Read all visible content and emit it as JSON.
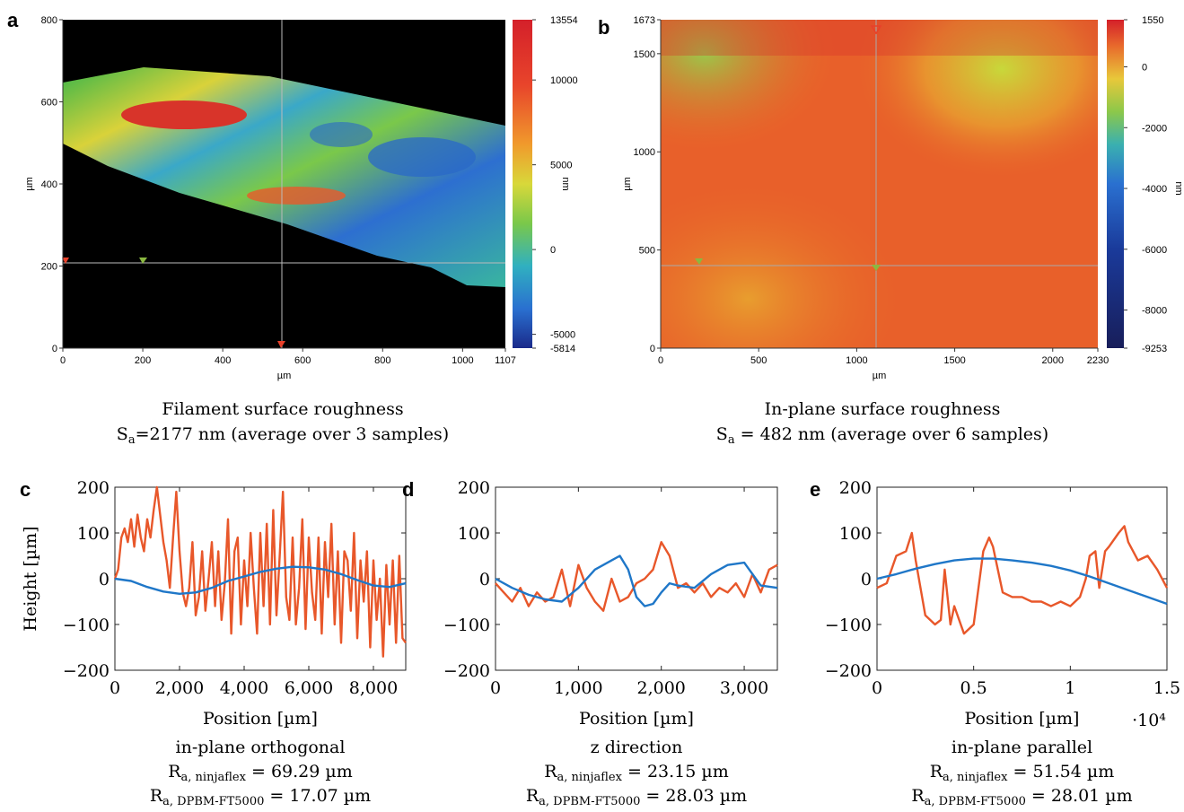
{
  "panels_top": [
    {
      "letter": "a",
      "x_ticks": [
        "0",
        "200",
        "400",
        "600",
        "800",
        "1000",
        "1107"
      ],
      "y_ticks": [
        "0",
        "200",
        "400",
        "600",
        "800"
      ],
      "x_unit": "µm",
      "y_unit": "µm",
      "colorbar_ticks": [
        "13554",
        "10000",
        "5000",
        "0",
        "-5000",
        "-5814"
      ],
      "colorbar_unit": "nm",
      "caption_title": "Filament surface roughness",
      "caption_line2": "=2177 nm (average over 3 samples)"
    },
    {
      "letter": "b",
      "x_ticks": [
        "0",
        "500",
        "1000",
        "1500",
        "2000",
        "2230"
      ],
      "y_ticks": [
        "0",
        "500",
        "1000",
        "1500",
        "1673"
      ],
      "x_unit": "µm",
      "y_unit": "µm",
      "colorbar_ticks": [
        "1550",
        "0",
        "-2000",
        "-4000",
        "-6000",
        "-8000",
        "-9253"
      ],
      "colorbar_unit": "nm",
      "caption_title": "In-plane surface roughness",
      "caption_line2": " = 482 nm (average over 6 samples)"
    }
  ],
  "sa_symbol": "S",
  "sa_sub": "a",
  "colors": {
    "series_orange": "#e8572a",
    "series_blue": "#1f77c8"
  },
  "chart_data": [
    {
      "letter": "c",
      "type": "line",
      "xlabel": "Position [µm]",
      "ylabel": "Height [µm]",
      "xlim": [
        0,
        9000
      ],
      "ylim": [
        -200,
        200
      ],
      "x_ticks": [
        0,
        2000,
        4000,
        6000,
        8000
      ],
      "x_tick_labels": [
        "0",
        "2,000",
        "4,000",
        "6,000",
        "8,000"
      ],
      "y_ticks": [
        -200,
        -100,
        0,
        100,
        200
      ],
      "y_tick_labels": [
        "−200",
        "−100",
        "0",
        "100",
        "200"
      ],
      "x_multiplier": "",
      "caption_title": "in-plane orthogonal",
      "ra_values": [
        "= 69.29 µm",
        "= 17.07 µm"
      ],
      "series": [
        {
          "color": "orange",
          "x": [
            0,
            100,
            200,
            300,
            400,
            500,
            600,
            700,
            800,
            900,
            1000,
            1100,
            1200,
            1300,
            1400,
            1500,
            1600,
            1700,
            1800,
            1900,
            2000,
            2100,
            2200,
            2300,
            2400,
            2500,
            2600,
            2700,
            2800,
            2900,
            3000,
            3100,
            3200,
            3300,
            3400,
            3500,
            3600,
            3700,
            3800,
            3900,
            4000,
            4100,
            4200,
            4300,
            4400,
            4500,
            4600,
            4700,
            4800,
            4900,
            5000,
            5100,
            5200,
            5300,
            5400,
            5500,
            5600,
            5700,
            5800,
            5900,
            6000,
            6100,
            6200,
            6300,
            6400,
            6500,
            6600,
            6700,
            6800,
            6900,
            7000,
            7100,
            7200,
            7300,
            7400,
            7500,
            7600,
            7700,
            7800,
            7900,
            8000,
            8100,
            8200,
            8300,
            8400,
            8500,
            8600,
            8700,
            8800,
            8900,
            9000
          ],
          "y": [
            0,
            20,
            90,
            110,
            80,
            130,
            70,
            140,
            90,
            60,
            130,
            90,
            150,
            200,
            140,
            80,
            40,
            -20,
            90,
            190,
            60,
            -30,
            -60,
            -20,
            80,
            -80,
            -40,
            60,
            -70,
            0,
            80,
            -60,
            60,
            -90,
            -10,
            130,
            -120,
            60,
            90,
            -100,
            40,
            -60,
            100,
            -20,
            -120,
            100,
            -60,
            120,
            -100,
            150,
            -80,
            50,
            190,
            -40,
            -90,
            90,
            -100,
            -20,
            130,
            -110,
            90,
            -30,
            -90,
            90,
            -120,
            80,
            -40,
            120,
            -100,
            60,
            -140,
            60,
            40,
            -70,
            100,
            -130,
            40,
            -50,
            60,
            -150,
            40,
            -90,
            0,
            -170,
            30,
            -100,
            40,
            -140,
            50,
            -130,
            -140
          ]
        },
        {
          "color": "blue",
          "x": [
            0,
            500,
            1000,
            1500,
            2000,
            2500,
            3000,
            3500,
            4000,
            4500,
            5000,
            5500,
            6000,
            6500,
            7000,
            7500,
            8000,
            8500,
            9000
          ],
          "y": [
            0,
            -5,
            -18,
            -28,
            -33,
            -30,
            -20,
            -5,
            5,
            15,
            22,
            26,
            25,
            20,
            10,
            -3,
            -15,
            -18,
            -10
          ]
        }
      ]
    },
    {
      "letter": "d",
      "type": "line",
      "xlabel": "Position [µm]",
      "ylabel": "",
      "xlim": [
        0,
        3400
      ],
      "ylim": [
        -200,
        200
      ],
      "x_ticks": [
        0,
        1000,
        2000,
        3000
      ],
      "x_tick_labels": [
        "0",
        "1,000",
        "2,000",
        "3,000"
      ],
      "y_ticks": [
        -200,
        -100,
        0,
        100,
        200
      ],
      "y_tick_labels": [
        "−200",
        "−100",
        "0",
        "100",
        "200"
      ],
      "x_multiplier": "",
      "caption_title": "z direction",
      "ra_values": [
        "= 23.15 µm",
        "= 28.03 µm"
      ],
      "series": [
        {
          "color": "orange",
          "x": [
            0,
            100,
            200,
            300,
            400,
            500,
            600,
            700,
            800,
            900,
            1000,
            1100,
            1200,
            1300,
            1400,
            1500,
            1600,
            1700,
            1800,
            1900,
            2000,
            2100,
            2200,
            2300,
            2400,
            2500,
            2600,
            2700,
            2800,
            2900,
            3000,
            3100,
            3200,
            3300,
            3400
          ],
          "y": [
            -10,
            -30,
            -50,
            -20,
            -60,
            -30,
            -50,
            -40,
            20,
            -60,
            30,
            -20,
            -50,
            -70,
            0,
            -50,
            -40,
            -10,
            0,
            20,
            80,
            50,
            -20,
            -10,
            -30,
            -10,
            -40,
            -20,
            -30,
            -10,
            -40,
            10,
            -30,
            20,
            30
          ]
        },
        {
          "color": "blue",
          "x": [
            0,
            200,
            400,
            600,
            800,
            1000,
            1200,
            1400,
            1500,
            1600,
            1700,
            1800,
            1900,
            2000,
            2100,
            2200,
            2400,
            2600,
            2800,
            3000,
            3200,
            3400
          ],
          "y": [
            0,
            -20,
            -35,
            -45,
            -50,
            -20,
            20,
            40,
            50,
            20,
            -40,
            -60,
            -55,
            -30,
            -10,
            -15,
            -20,
            10,
            30,
            35,
            -15,
            -20
          ]
        }
      ]
    },
    {
      "letter": "e",
      "type": "line",
      "xlabel": "Position [µm]",
      "ylabel": "",
      "xlim": [
        0,
        1.5
      ],
      "ylim": [
        -200,
        200
      ],
      "x_ticks": [
        0,
        0.5,
        1,
        1.5
      ],
      "x_tick_labels": [
        "0",
        "0.5",
        "1",
        "1.5"
      ],
      "y_ticks": [
        -200,
        -100,
        0,
        100,
        200
      ],
      "y_tick_labels": [
        "−200",
        "−100",
        "0",
        "100",
        "200"
      ],
      "x_multiplier": "·10⁴",
      "caption_title": "in-plane parallel",
      "ra_values": [
        "= 51.54 µm",
        "= 28.01 µm"
      ],
      "series": [
        {
          "color": "orange",
          "x": [
            0,
            0.05,
            0.1,
            0.15,
            0.18,
            0.2,
            0.25,
            0.3,
            0.33,
            0.35,
            0.38,
            0.4,
            0.45,
            0.5,
            0.55,
            0.58,
            0.6,
            0.65,
            0.7,
            0.75,
            0.8,
            0.85,
            0.9,
            0.95,
            1.0,
            1.05,
            1.08,
            1.1,
            1.13,
            1.15,
            1.18,
            1.2,
            1.25,
            1.28,
            1.3,
            1.35,
            1.4,
            1.45,
            1.5
          ],
          "y": [
            -20,
            -10,
            50,
            60,
            100,
            40,
            -80,
            -100,
            -90,
            20,
            -100,
            -60,
            -120,
            -100,
            60,
            90,
            70,
            -30,
            -40,
            -40,
            -50,
            -50,
            -60,
            -50,
            -60,
            -40,
            0,
            50,
            60,
            -20,
            60,
            70,
            100,
            115,
            80,
            40,
            50,
            20,
            -20
          ]
        },
        {
          "color": "blue",
          "x": [
            0,
            0.1,
            0.2,
            0.3,
            0.4,
            0.5,
            0.6,
            0.7,
            0.8,
            0.9,
            1.0,
            1.1,
            1.2,
            1.3,
            1.4,
            1.5
          ],
          "y": [
            0,
            10,
            22,
            32,
            40,
            44,
            44,
            40,
            35,
            28,
            18,
            5,
            -10,
            -25,
            -40,
            -55
          ]
        }
      ]
    }
  ],
  "ra_subs": [
    "a, ninjaflex",
    "a, DPBM-FT5000"
  ],
  "ra_symbol": "R"
}
